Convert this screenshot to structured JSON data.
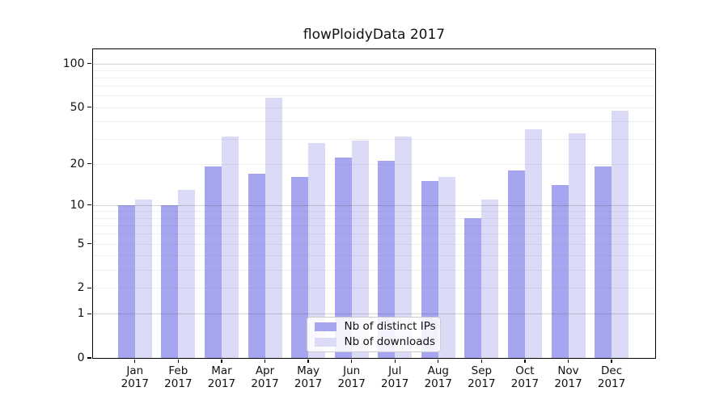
{
  "title": "flowPloidyData 2017",
  "chart_data": {
    "type": "bar",
    "categories": [
      "Jan",
      "Feb",
      "Mar",
      "Apr",
      "May",
      "Jun",
      "Jul",
      "Aug",
      "Sep",
      "Oct",
      "Nov",
      "Dec"
    ],
    "year_label": "2017",
    "series": [
      {
        "name": "Nb of distinct IPs",
        "color": "#a6a6f0",
        "values": [
          10,
          10,
          19,
          17,
          16,
          22,
          21,
          15,
          8,
          18,
          14,
          19
        ]
      },
      {
        "name": "Nb of downloads",
        "color": "#dbdbf8",
        "values": [
          11,
          13,
          31,
          58,
          28,
          29,
          31,
          16,
          11,
          35,
          33,
          47
        ]
      }
    ],
    "yscale": "log1p",
    "ylim": [
      0,
      126
    ],
    "yticks": [
      0,
      1,
      2,
      5,
      10,
      20,
      50,
      100
    ],
    "major_gridlines": [
      1,
      10,
      100
    ],
    "minor_gridlines": [
      2,
      3,
      4,
      5,
      6,
      7,
      8,
      9,
      20,
      30,
      40,
      50,
      60,
      70,
      80,
      90
    ],
    "grid": true,
    "legend_position": "lower center",
    "xlabel": "",
    "ylabel": ""
  },
  "colors": {
    "spine": "#000000",
    "major_grid": "#d2d2d2",
    "minor_grid": "#eeeeee",
    "background": "#ffffff"
  }
}
